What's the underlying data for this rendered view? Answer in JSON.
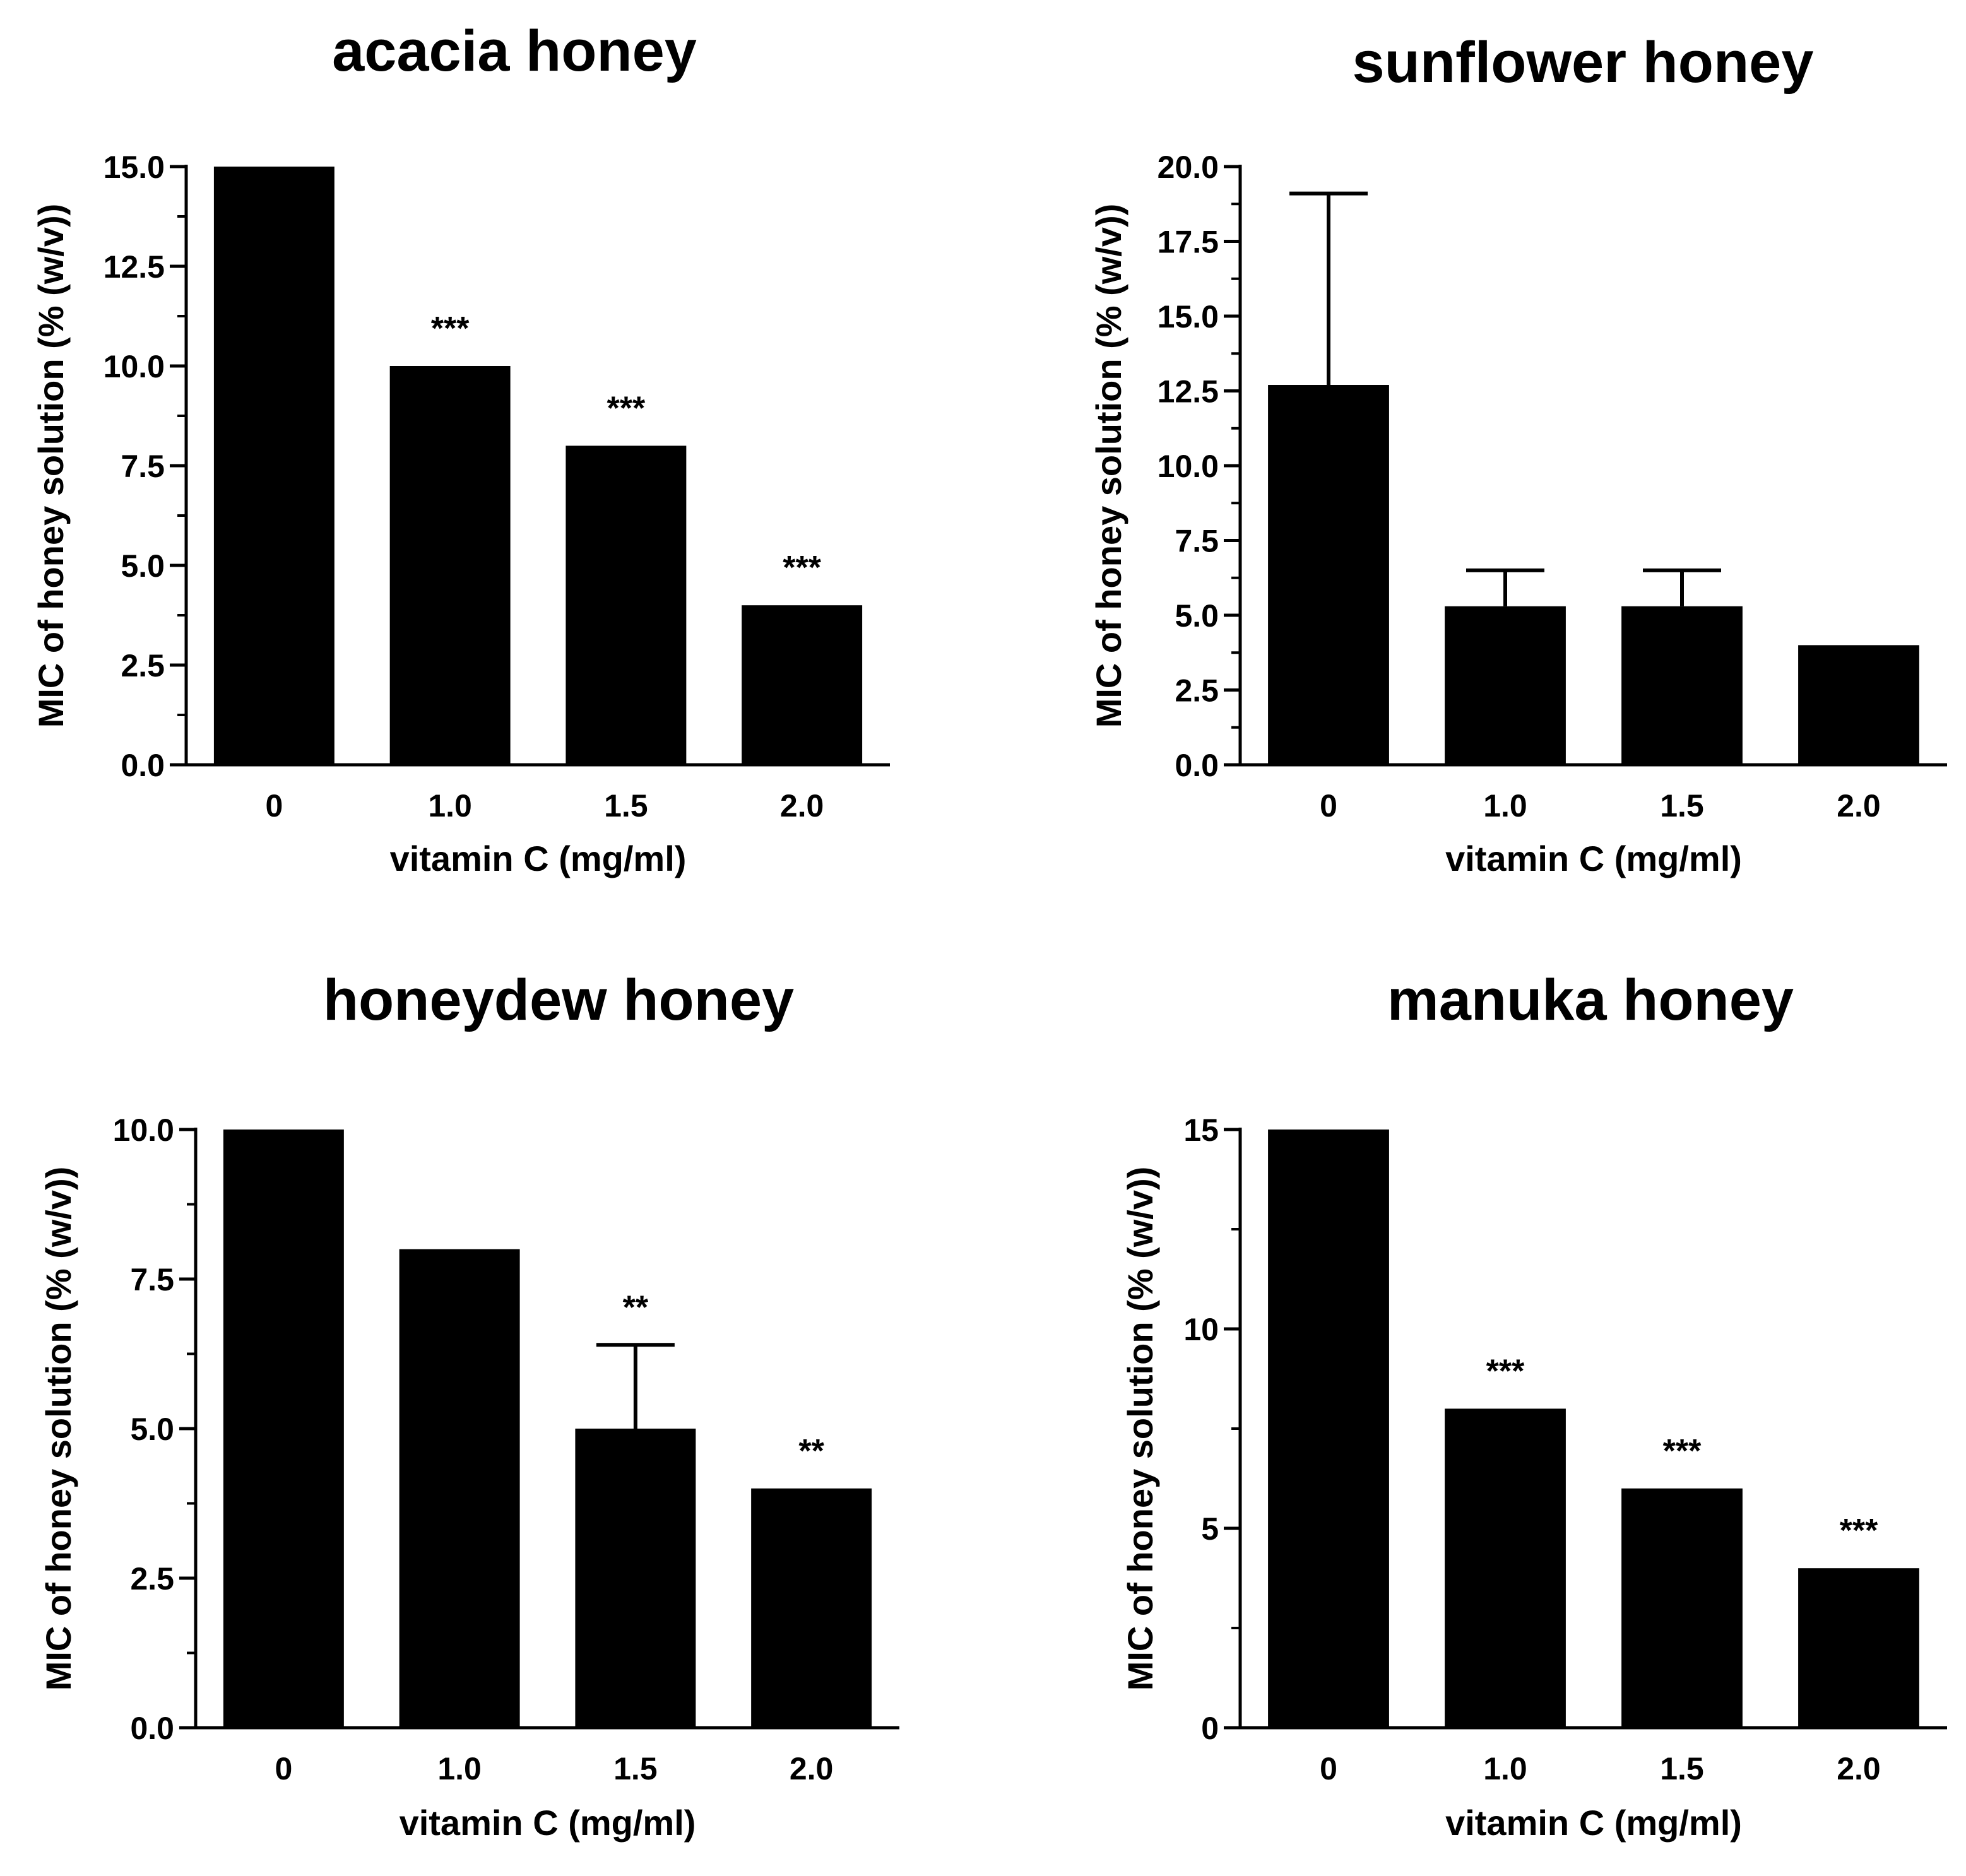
{
  "figure": {
    "background": "#ffffff",
    "bar_color": "#000000"
  },
  "chart_data": [
    {
      "type": "bar",
      "title": "acacia honey",
      "xlabel": "vitamin C (mg/ml)",
      "ylabel": "MIC of honey solution (% (w/v))",
      "categories": [
        "0",
        "1.0",
        "1.5",
        "2.0"
      ],
      "values": [
        15.0,
        10.0,
        8.0,
        4.0
      ],
      "error_upper": [
        null,
        null,
        null,
        null
      ],
      "significance": [
        "",
        "***",
        "***",
        "***"
      ],
      "ylim": [
        0,
        15
      ],
      "yticks": [
        0,
        2.5,
        5,
        7.5,
        10,
        12.5,
        15
      ],
      "ytick_labels": [
        "0.0",
        "2.5",
        "5.0",
        "7.5",
        "10.0",
        "12.5",
        "15.0"
      ]
    },
    {
      "type": "bar",
      "title": "sunflower honey",
      "xlabel": "vitamin C (mg/ml)",
      "ylabel": "MIC of honey solution (% (w/v))",
      "categories": [
        "0",
        "1.0",
        "1.5",
        "2.0"
      ],
      "values": [
        12.7,
        5.3,
        5.3,
        4.0
      ],
      "error_upper": [
        19.1,
        6.5,
        6.5,
        null
      ],
      "significance": [
        "",
        "",
        "",
        ""
      ],
      "ylim": [
        0,
        20
      ],
      "yticks": [
        0,
        2.5,
        5,
        7.5,
        10,
        12.5,
        15,
        17.5,
        20
      ],
      "ytick_labels": [
        "0.0",
        "2.5",
        "5.0",
        "7.5",
        "10.0",
        "12.5",
        "15.0",
        "17.5",
        "20.0"
      ]
    },
    {
      "type": "bar",
      "title": "honeydew honey",
      "xlabel": "vitamin C (mg/ml)",
      "ylabel": "MIC of honey solution (% (w/v))",
      "categories": [
        "0",
        "1.0",
        "1.5",
        "2.0"
      ],
      "values": [
        10.0,
        8.0,
        5.0,
        4.0
      ],
      "error_upper": [
        null,
        null,
        6.4,
        null
      ],
      "significance": [
        "",
        "",
        "**",
        "**"
      ],
      "ylim": [
        0,
        10
      ],
      "yticks": [
        0,
        2.5,
        5,
        7.5,
        10
      ],
      "ytick_labels": [
        "0.0",
        "2.5",
        "5.0",
        "7.5",
        "10.0"
      ]
    },
    {
      "type": "bar",
      "title": "manuka honey",
      "xlabel": "vitamin C (mg/ml)",
      "ylabel": "MIC of honey solution (% (w/v))",
      "categories": [
        "0",
        "1.0",
        "1.5",
        "2.0"
      ],
      "values": [
        15,
        8,
        6,
        4
      ],
      "error_upper": [
        null,
        null,
        null,
        null
      ],
      "significance": [
        "",
        "***",
        "***",
        "***"
      ],
      "ylim": [
        0,
        15
      ],
      "yticks": [
        0,
        5,
        10,
        15
      ],
      "ytick_labels": [
        "0",
        "5",
        "10",
        "15"
      ]
    }
  ]
}
